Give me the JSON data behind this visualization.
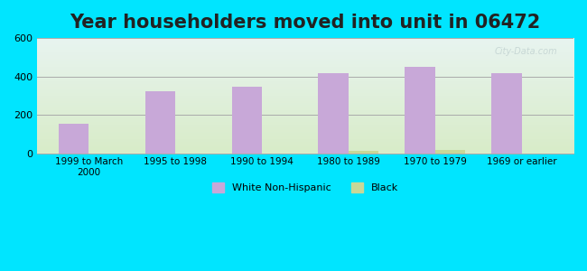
{
  "title": "Year householders moved into unit in 06472",
  "categories": [
    "1999 to March\n2000",
    "1995 to 1998",
    "1990 to 1994",
    "1980 to 1989",
    "1970 to 1979",
    "1969 or earlier"
  ],
  "white_values": [
    155,
    325,
    345,
    415,
    450,
    415
  ],
  "black_values": [
    0,
    0,
    0,
    10,
    15,
    0
  ],
  "white_color": "#c8a8d8",
  "black_color": "#c8d898",
  "ylim": [
    0,
    600
  ],
  "yticks": [
    0,
    200,
    400,
    600
  ],
  "background_outer": "#00e5ff",
  "background_top": "#e8f4f0",
  "background_bottom": "#d8ecc8",
  "title_fontsize": 15,
  "bar_width": 0.35,
  "watermark": "City-Data.com"
}
